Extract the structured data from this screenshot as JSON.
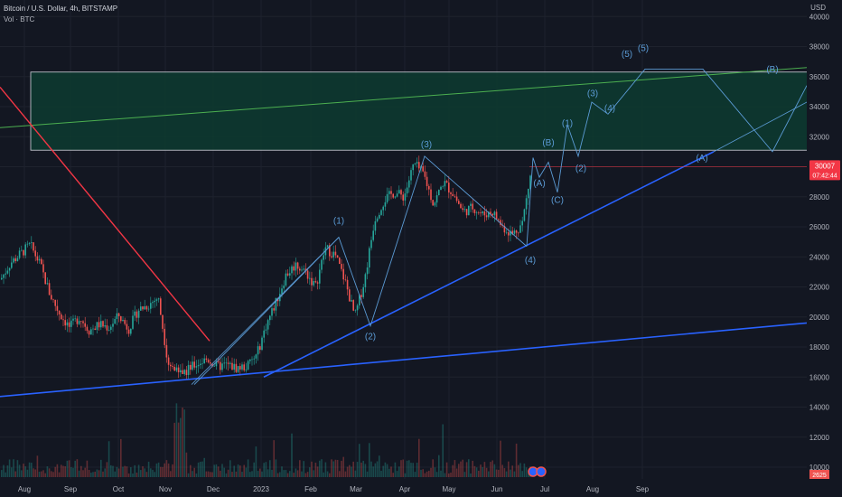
{
  "header": {
    "title": "Bitcoin / U.S. Dollar, 4h, BITSTAMP",
    "volume_label": "Vol · BTC",
    "currency": "USD"
  },
  "colors": {
    "background": "#131722",
    "grid": "#1e222d",
    "up": "#26a69a",
    "down": "#ef5350",
    "box_fill": "#0d3b30",
    "box_border": "#d1d4dc",
    "trendline_blue": "#2962ff",
    "wave_line": "#5b9bd5",
    "wave_label": "#5b9bd5",
    "red_line": "#f23645",
    "price_line": "#f23645",
    "green_line": "#4caf50"
  },
  "chart_data": {
    "type": "candlestick",
    "title": "Bitcoin / U.S. Dollar, 4h, BITSTAMP",
    "x_ticks": [
      "Aug",
      "Sep",
      "Oct",
      "Nov",
      "Dec",
      "2023",
      "Feb",
      "Mar",
      "Apr",
      "May",
      "Jun",
      "Jul",
      "Aug",
      "Sep"
    ],
    "y_ticks": [
      10000,
      12000,
      14000,
      16000,
      18000,
      20000,
      22000,
      24000,
      26000,
      28000,
      30000,
      32000,
      34000,
      36000,
      38000,
      40000
    ],
    "ylim": [
      9000,
      40500
    ],
    "current_price": {
      "value": "30007",
      "countdown": "07:42:44"
    },
    "volume_readout": "2625",
    "price_path": [
      [
        "Aug",
        22500
      ],
      [
        "Aug",
        23600
      ],
      [
        "Aug",
        24200
      ],
      [
        "Aug",
        24800
      ],
      [
        "Aug",
        23500
      ],
      [
        "Sep",
        21500
      ],
      [
        "Sep",
        20200
      ],
      [
        "Sep",
        19300
      ],
      [
        "Sep",
        20000
      ],
      [
        "Sep",
        19100
      ],
      [
        "Oct",
        19500
      ],
      [
        "Oct",
        19300
      ],
      [
        "Oct",
        20100
      ],
      [
        "Oct",
        19200
      ],
      [
        "Oct",
        20500
      ],
      [
        "Nov",
        20800
      ],
      [
        "Nov",
        21300
      ],
      [
        "Nov",
        17000
      ],
      [
        "Nov",
        16200
      ],
      [
        "Nov",
        16500
      ],
      [
        "Dec",
        16900
      ],
      [
        "Dec",
        17200
      ],
      [
        "Dec",
        16700
      ],
      [
        "Dec",
        16800
      ],
      [
        "Dec",
        16600
      ],
      [
        "2023",
        16700
      ],
      [
        "2023",
        17400
      ],
      [
        "2023",
        19500
      ],
      [
        "2023",
        21000
      ],
      [
        "2023",
        22800
      ],
      [
        "Feb",
        23500
      ],
      [
        "Feb",
        23000
      ],
      [
        "Feb",
        22000
      ],
      [
        "Feb",
        24600
      ],
      [
        "Feb",
        24100
      ],
      [
        "Mar",
        22400
      ],
      [
        "Mar",
        20000
      ],
      [
        "Mar",
        22500
      ],
      [
        "Mar",
        26500
      ],
      [
        "Mar",
        27800
      ],
      [
        "Apr",
        28300
      ],
      [
        "Apr",
        28000
      ],
      [
        "Apr",
        30200
      ],
      [
        "Apr",
        29500
      ],
      [
        "Apr",
        27500
      ],
      [
        "May",
        29000
      ],
      [
        "May",
        28200
      ],
      [
        "May",
        27000
      ],
      [
        "May",
        27300
      ],
      [
        "May",
        26800
      ],
      [
        "Jun",
        27000
      ],
      [
        "Jun",
        26000
      ],
      [
        "Jun",
        25500
      ],
      [
        "Jun",
        26200
      ],
      [
        "Jun",
        30007
      ]
    ],
    "annotations": {
      "labels": [
        "(1)",
        "(2)",
        "(3)",
        "(4)",
        "(A)",
        "(B)",
        "(C)",
        "(1)",
        "(2)",
        "(3)",
        "(4)",
        "(5)",
        "(5)",
        "(A)",
        "(B)"
      ],
      "projection": [
        [
          "Jun",
          30600
        ],
        [
          "Jun",
          29300
        ],
        [
          "Jul",
          30300
        ],
        [
          "Jul",
          28300
        ],
        [
          "Jul",
          32800
        ],
        [
          "Jul",
          30700
        ],
        [
          "Aug",
          34300
        ],
        [
          "Aug",
          33500
        ],
        [
          "Aug",
          36500
        ],
        [
          "Sep",
          36500
        ],
        [
          "Sep",
          31000
        ],
        [
          "Sep",
          35400
        ],
        [
          "Sep",
          34200
        ]
      ],
      "zone": {
        "from": 31100,
        "to": 36300
      }
    }
  }
}
